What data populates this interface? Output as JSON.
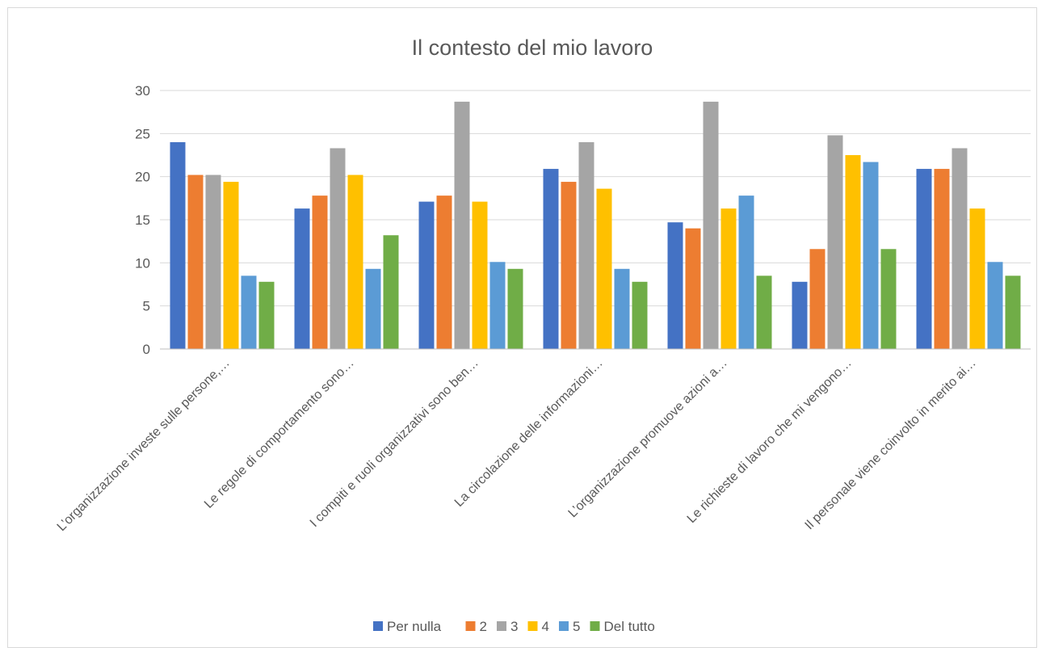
{
  "chart_data": {
    "type": "bar",
    "title": "Il contesto del mio lavoro",
    "categories": [
      "L’organizzazione investe sulle persone,…",
      "Le regole di comportamento sono…",
      "I compiti e ruoli organizzativi sono ben…",
      "La circolazione delle informazioni…",
      "L’organizzazione promuove azioni a…",
      "Le richieste di lavoro che mi vengono…",
      "Il personale viene coinvolto in merito ai…"
    ],
    "series": [
      {
        "name": "Per nulla",
        "color": "#4472c4",
        "values": [
          24.0,
          16.3,
          17.1,
          20.9,
          14.7,
          7.8,
          20.9
        ]
      },
      {
        "name": "2",
        "color": "#ed7d31",
        "values": [
          20.2,
          17.8,
          17.8,
          19.4,
          14.0,
          11.6,
          20.9
        ]
      },
      {
        "name": "3",
        "color": "#a5a5a5",
        "values": [
          20.2,
          23.3,
          28.7,
          24.0,
          28.7,
          24.8,
          23.3
        ]
      },
      {
        "name": "4",
        "color": "#ffc000",
        "values": [
          19.4,
          20.2,
          17.1,
          18.6,
          16.3,
          22.5,
          16.3
        ]
      },
      {
        "name": "5",
        "color": "#5b9bd5",
        "values": [
          8.5,
          9.3,
          10.1,
          9.3,
          17.8,
          21.7,
          10.1
        ]
      },
      {
        "name": "Del tutto",
        "color": "#70ad47",
        "values": [
          7.8,
          13.2,
          9.3,
          7.8,
          8.5,
          11.6,
          8.5
        ]
      }
    ],
    "yticks": [
      "0",
      "5",
      "10",
      "15",
      "20",
      "25",
      "30"
    ],
    "ylim": [
      0,
      30
    ],
    "grid": true,
    "legend_position": "bottom"
  }
}
